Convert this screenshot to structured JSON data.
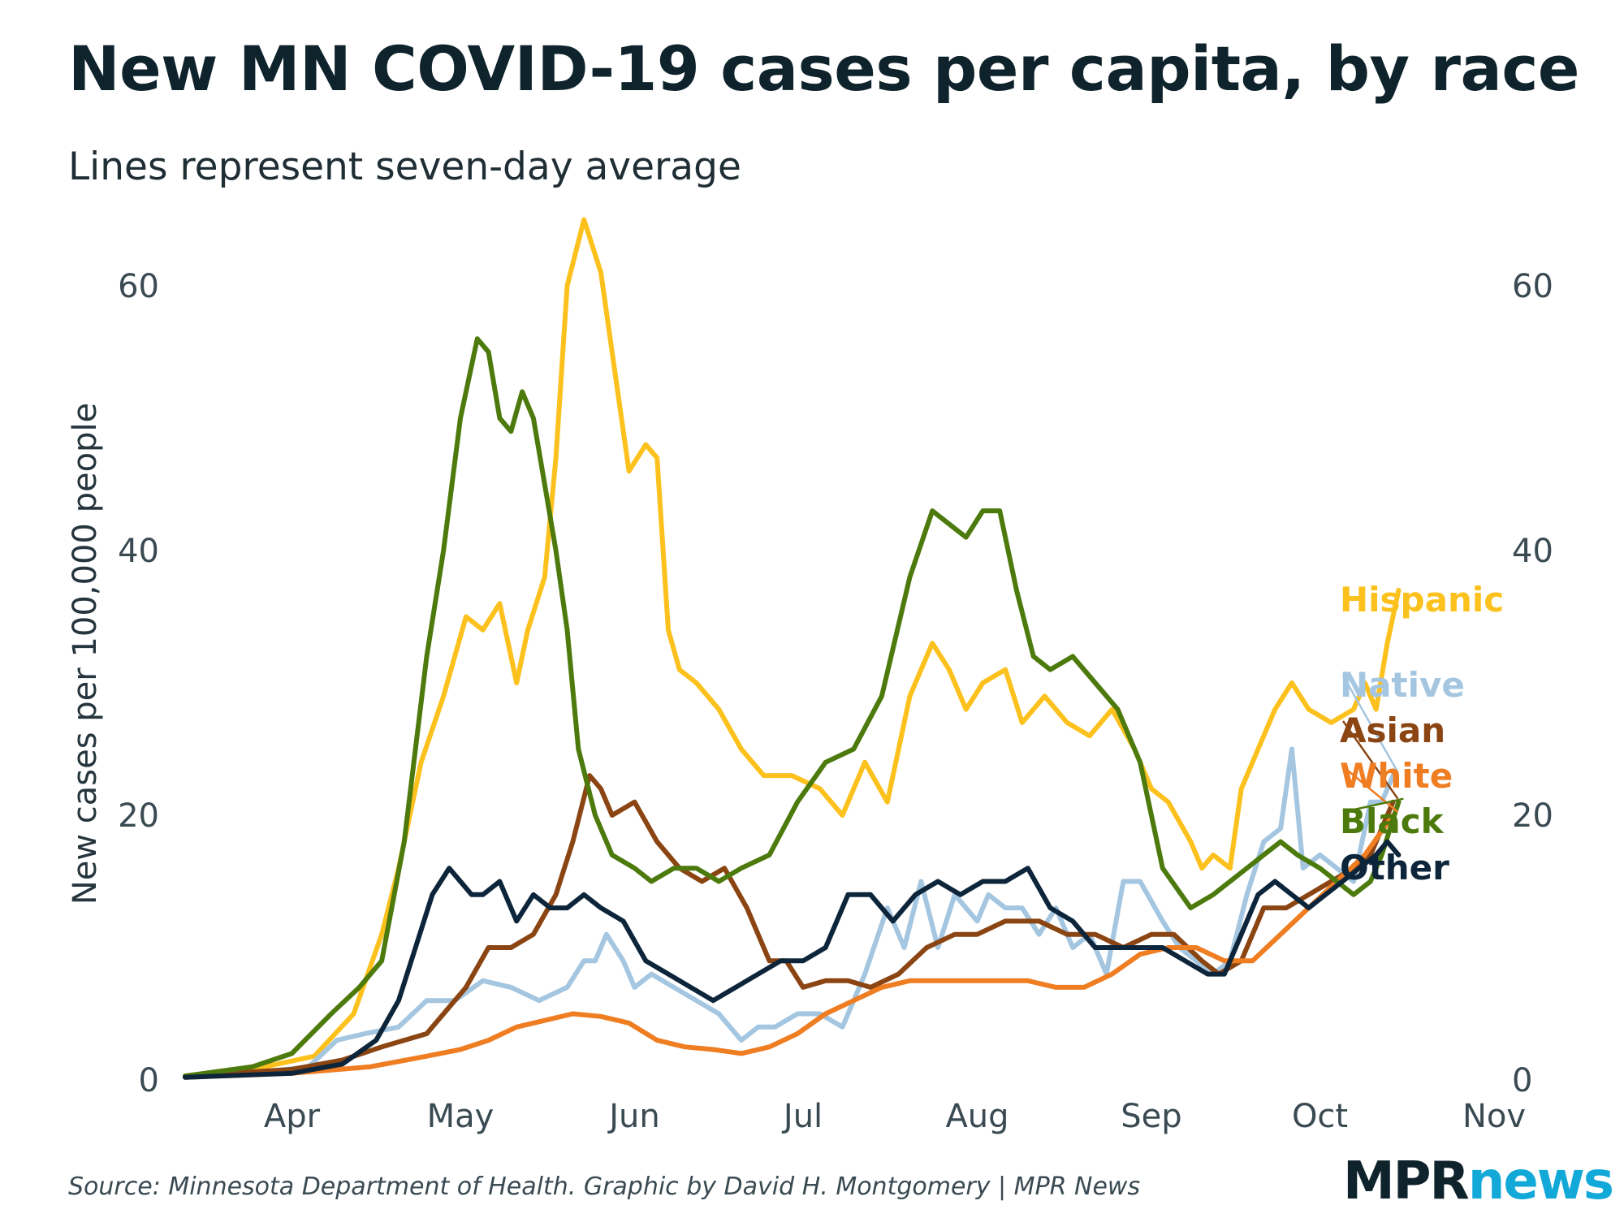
{
  "title": "New MN COVID-19 cases per capita, by race",
  "subtitle": "Lines represent seven-day average",
  "source": "Source: Minnesota Department of Health. Graphic by David H. Montgomery | MPR News",
  "logo": {
    "part1": "MPR",
    "part2": "news"
  },
  "colors": {
    "Hispanic": "#fcc11d",
    "Native": "#a4c6e0",
    "Asian": "#8b4513",
    "White": "#ef7d22",
    "Black": "#4d7a0d",
    "Other": "#0d253a"
  },
  "chart_data": {
    "type": "line",
    "title": "New MN COVID-19 cases per capita, by race",
    "subtitle": "Lines represent seven-day average",
    "ylabel": "New cases per 100,000 people",
    "xlabel": "",
    "ylim": [
      0,
      60
    ],
    "xlim": [
      "2020-03-13",
      "2020-11-01"
    ],
    "yticks": [
      "0",
      "20",
      "40",
      "60"
    ],
    "xticks": [
      {
        "label": "Apr",
        "date": "2020-04-01"
      },
      {
        "label": "May",
        "date": "2020-05-01"
      },
      {
        "label": "Jun",
        "date": "2020-06-01"
      },
      {
        "label": "Jul",
        "date": "2020-07-01"
      },
      {
        "label": "Aug",
        "date": "2020-08-01"
      },
      {
        "label": "Sep",
        "date": "2020-09-01"
      },
      {
        "label": "Oct",
        "date": "2020-10-01"
      },
      {
        "label": "Nov",
        "date": "2020-11-01"
      }
    ],
    "grid": false,
    "series": [
      {
        "name": "Hispanic",
        "label": "Hispanic",
        "x": [
          "2020-03-13",
          "2020-03-25",
          "2020-04-05",
          "2020-04-12",
          "2020-04-17",
          "2020-04-20",
          "2020-04-24",
          "2020-04-28",
          "2020-05-02",
          "2020-05-05",
          "2020-05-08",
          "2020-05-11",
          "2020-05-13",
          "2020-05-16",
          "2020-05-18",
          "2020-05-20",
          "2020-05-23",
          "2020-05-26",
          "2020-05-28",
          "2020-05-31",
          "2020-06-03",
          "2020-06-05",
          "2020-06-07",
          "2020-06-09",
          "2020-06-12",
          "2020-06-16",
          "2020-06-20",
          "2020-06-24",
          "2020-06-29",
          "2020-07-04",
          "2020-07-08",
          "2020-07-12",
          "2020-07-16",
          "2020-07-20",
          "2020-07-24",
          "2020-07-27",
          "2020-07-30",
          "2020-08-02",
          "2020-08-06",
          "2020-08-09",
          "2020-08-13",
          "2020-08-17",
          "2020-08-21",
          "2020-08-25",
          "2020-08-29",
          "2020-09-01",
          "2020-09-04",
          "2020-09-08",
          "2020-09-10",
          "2020-09-12",
          "2020-09-15",
          "2020-09-17",
          "2020-09-20",
          "2020-09-23",
          "2020-09-26",
          "2020-09-29",
          "2020-10-03",
          "2020-10-07",
          "2020-10-09",
          "2020-10-11",
          "2020-10-13",
          "2020-10-15"
        ],
        "values": [
          0.3,
          0.8,
          1.8,
          5,
          11,
          16,
          24,
          29,
          35,
          34,
          36,
          30,
          34,
          38,
          47,
          60,
          65,
          61,
          55,
          46,
          48,
          47,
          34,
          31,
          30,
          28,
          25,
          23,
          23,
          22,
          20,
          24,
          21,
          29,
          33,
          31,
          28,
          30,
          31,
          27,
          29,
          27,
          26,
          28,
          25,
          22,
          21,
          18,
          16,
          17,
          16,
          22,
          25,
          28,
          30,
          28,
          27,
          28,
          30,
          28,
          33,
          37
        ]
      },
      {
        "name": "Native",
        "label": "Native",
        "x": [
          "2020-03-13",
          "2020-03-25",
          "2020-04-04",
          "2020-04-09",
          "2020-04-14",
          "2020-04-20",
          "2020-04-25",
          "2020-04-30",
          "2020-05-05",
          "2020-05-10",
          "2020-05-15",
          "2020-05-20",
          "2020-05-23",
          "2020-05-25",
          "2020-05-27",
          "2020-05-30",
          "2020-06-01",
          "2020-06-04",
          "2020-06-08",
          "2020-06-12",
          "2020-06-16",
          "2020-06-20",
          "2020-06-23",
          "2020-06-26",
          "2020-06-30",
          "2020-07-04",
          "2020-07-08",
          "2020-07-12",
          "2020-07-16",
          "2020-07-19",
          "2020-07-22",
          "2020-07-25",
          "2020-07-28",
          "2020-08-01",
          "2020-08-03",
          "2020-08-06",
          "2020-08-09",
          "2020-08-12",
          "2020-08-15",
          "2020-08-18",
          "2020-08-21",
          "2020-08-24",
          "2020-08-27",
          "2020-08-30",
          "2020-09-03",
          "2020-09-06",
          "2020-09-09",
          "2020-09-12",
          "2020-09-15",
          "2020-09-18",
          "2020-09-21",
          "2020-09-24",
          "2020-09-26",
          "2020-09-28",
          "2020-10-01",
          "2020-10-04",
          "2020-10-07",
          "2020-10-10",
          "2020-10-12",
          "2020-10-14"
        ],
        "values": [
          0.2,
          0.5,
          1,
          3,
          3.5,
          4,
          6,
          6,
          7.5,
          7,
          6,
          7,
          9,
          9,
          11,
          9,
          7,
          8,
          7,
          6,
          5,
          3,
          4,
          4,
          5,
          5,
          4,
          8,
          13,
          10,
          15,
          10,
          14,
          12,
          14,
          13,
          13,
          11,
          13,
          10,
          11,
          8,
          15,
          15,
          12,
          10,
          9,
          8,
          9,
          14,
          18,
          19,
          25,
          16,
          17,
          16,
          15,
          21,
          21,
          23
        ]
      },
      {
        "name": "Asian",
        "label": "Asian",
        "x": [
          "2020-03-13",
          "2020-04-01",
          "2020-04-10",
          "2020-04-17",
          "2020-04-25",
          "2020-05-02",
          "2020-05-06",
          "2020-05-10",
          "2020-05-14",
          "2020-05-18",
          "2020-05-21",
          "2020-05-24",
          "2020-05-26",
          "2020-05-28",
          "2020-06-01",
          "2020-06-05",
          "2020-06-09",
          "2020-06-13",
          "2020-06-17",
          "2020-06-21",
          "2020-06-25",
          "2020-06-28",
          "2020-07-01",
          "2020-07-05",
          "2020-07-09",
          "2020-07-13",
          "2020-07-18",
          "2020-07-23",
          "2020-07-28",
          "2020-08-01",
          "2020-08-06",
          "2020-08-12",
          "2020-08-17",
          "2020-08-22",
          "2020-08-27",
          "2020-09-01",
          "2020-09-05",
          "2020-09-10",
          "2020-09-13",
          "2020-09-17",
          "2020-09-21",
          "2020-09-25",
          "2020-09-29",
          "2020-10-03",
          "2020-10-07",
          "2020-10-10",
          "2020-10-14"
        ],
        "values": [
          0.3,
          0.8,
          1.5,
          2.5,
          3.5,
          7,
          10,
          10,
          11,
          14,
          18,
          23,
          22,
          20,
          21,
          18,
          16,
          15,
          16,
          13,
          9,
          9,
          7,
          7.5,
          7.5,
          7,
          8,
          10,
          11,
          11,
          12,
          12,
          11,
          11,
          10,
          11,
          11,
          9,
          8,
          9,
          13,
          13,
          14,
          15,
          16,
          17,
          21
        ]
      },
      {
        "name": "White",
        "label": "White",
        "x": [
          "2020-03-13",
          "2020-04-01",
          "2020-04-15",
          "2020-04-25",
          "2020-05-01",
          "2020-05-06",
          "2020-05-11",
          "2020-05-16",
          "2020-05-21",
          "2020-05-26",
          "2020-05-31",
          "2020-06-05",
          "2020-06-10",
          "2020-06-15",
          "2020-06-20",
          "2020-06-25",
          "2020-06-30",
          "2020-07-05",
          "2020-07-10",
          "2020-07-15",
          "2020-07-20",
          "2020-07-25",
          "2020-07-30",
          "2020-08-05",
          "2020-08-10",
          "2020-08-15",
          "2020-08-20",
          "2020-08-25",
          "2020-08-30",
          "2020-09-04",
          "2020-09-09",
          "2020-09-14",
          "2020-09-19",
          "2020-09-24",
          "2020-09-29",
          "2020-10-04",
          "2020-10-09",
          "2020-10-14"
        ],
        "values": [
          0.2,
          0.5,
          1,
          1.8,
          2.3,
          3,
          4,
          4.5,
          5,
          4.8,
          4.3,
          3,
          2.5,
          2.3,
          2,
          2.5,
          3.5,
          5,
          6,
          7,
          7.5,
          7.5,
          7.5,
          7.5,
          7.5,
          7,
          7,
          8,
          9.5,
          10,
          10,
          9,
          9,
          11,
          13,
          15,
          17,
          20
        ]
      },
      {
        "name": "Black",
        "label": "Black",
        "x": [
          "2020-03-13",
          "2020-03-25",
          "2020-04-01",
          "2020-04-08",
          "2020-04-13",
          "2020-04-17",
          "2020-04-21",
          "2020-04-25",
          "2020-04-28",
          "2020-05-01",
          "2020-05-04",
          "2020-05-06",
          "2020-05-08",
          "2020-05-10",
          "2020-05-12",
          "2020-05-14",
          "2020-05-16",
          "2020-05-18",
          "2020-05-20",
          "2020-05-22",
          "2020-05-25",
          "2020-05-28",
          "2020-06-01",
          "2020-06-04",
          "2020-06-08",
          "2020-06-12",
          "2020-06-16",
          "2020-06-20",
          "2020-06-25",
          "2020-06-30",
          "2020-07-05",
          "2020-07-10",
          "2020-07-15",
          "2020-07-20",
          "2020-07-24",
          "2020-07-27",
          "2020-07-30",
          "2020-08-02",
          "2020-08-05",
          "2020-08-08",
          "2020-08-11",
          "2020-08-14",
          "2020-08-18",
          "2020-08-22",
          "2020-08-26",
          "2020-08-30",
          "2020-09-03",
          "2020-09-08",
          "2020-09-12",
          "2020-09-15",
          "2020-09-18",
          "2020-09-21",
          "2020-09-24",
          "2020-09-27",
          "2020-10-01",
          "2020-10-04",
          "2020-10-07",
          "2020-10-10",
          "2020-10-12",
          "2020-10-15"
        ],
        "values": [
          0.3,
          1,
          2,
          5,
          7,
          9,
          18,
          32,
          40,
          50,
          56,
          55,
          50,
          49,
          52,
          50,
          45,
          40,
          34,
          25,
          20,
          17,
          16,
          15,
          16,
          16,
          15,
          16,
          17,
          21,
          24,
          25,
          29,
          38,
          43,
          42,
          41,
          43,
          43,
          37,
          32,
          31,
          32,
          30,
          28,
          24,
          16,
          13,
          14,
          15,
          16,
          17,
          18,
          17,
          16,
          15,
          14,
          15,
          17,
          21
        ]
      },
      {
        "name": "Other",
        "label": "Other",
        "x": [
          "2020-03-13",
          "2020-04-01",
          "2020-04-10",
          "2020-04-16",
          "2020-04-20",
          "2020-04-23",
          "2020-04-26",
          "2020-04-29",
          "2020-05-01",
          "2020-05-03",
          "2020-05-05",
          "2020-05-08",
          "2020-05-11",
          "2020-05-14",
          "2020-05-17",
          "2020-05-20",
          "2020-05-23",
          "2020-05-26",
          "2020-05-30",
          "2020-06-03",
          "2020-06-07",
          "2020-06-11",
          "2020-06-15",
          "2020-06-19",
          "2020-06-23",
          "2020-06-27",
          "2020-07-01",
          "2020-07-05",
          "2020-07-09",
          "2020-07-13",
          "2020-07-17",
          "2020-07-21",
          "2020-07-25",
          "2020-07-29",
          "2020-08-02",
          "2020-08-06",
          "2020-08-10",
          "2020-08-14",
          "2020-08-18",
          "2020-08-22",
          "2020-08-26",
          "2020-08-30",
          "2020-09-03",
          "2020-09-07",
          "2020-09-11",
          "2020-09-14",
          "2020-09-17",
          "2020-09-20",
          "2020-09-23",
          "2020-09-26",
          "2020-09-29",
          "2020-10-02",
          "2020-10-05",
          "2020-10-08",
          "2020-10-11",
          "2020-10-13",
          "2020-10-15"
        ],
        "values": [
          0.2,
          0.5,
          1.2,
          3,
          6,
          10,
          14,
          16,
          15,
          14,
          14,
          15,
          12,
          14,
          13,
          13,
          14,
          13,
          12,
          9,
          8,
          7,
          6,
          7,
          8,
          9,
          9,
          10,
          14,
          14,
          12,
          14,
          15,
          14,
          15,
          15,
          16,
          13,
          12,
          10,
          10,
          10,
          10,
          9,
          8,
          8,
          11,
          14,
          15,
          14,
          13,
          14,
          15,
          16,
          17,
          18,
          17
        ]
      }
    ]
  }
}
